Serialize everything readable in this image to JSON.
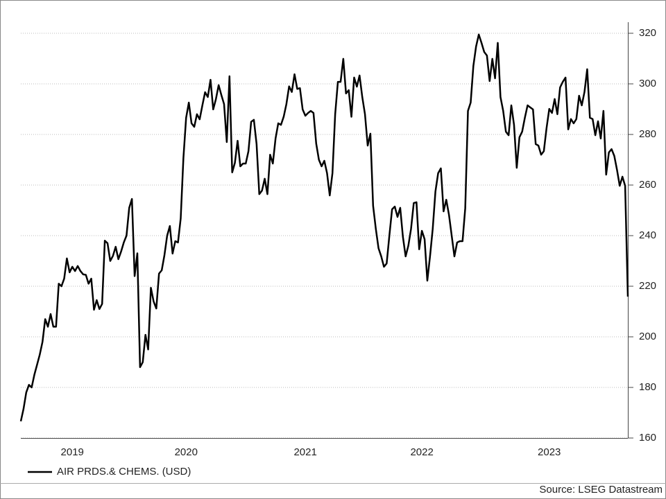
{
  "chart_data": {
    "type": "line",
    "categories": [
      null,
      null,
      null,
      null,
      null,
      null,
      null,
      null,
      null,
      null,
      null,
      null,
      null,
      null,
      null,
      null,
      null,
      null,
      null,
      "2019",
      null,
      null,
      null,
      null,
      null,
      null,
      null,
      null,
      null,
      null,
      null,
      null,
      null,
      null,
      null,
      null,
      null,
      null,
      null,
      null,
      null,
      null,
      null,
      null,
      null,
      null,
      null,
      null,
      null,
      null,
      null,
      null,
      null,
      null,
      null,
      null,
      null,
      null,
      null,
      null,
      null,
      "2020",
      null,
      null,
      null,
      null,
      null,
      null,
      null,
      null,
      null,
      null,
      null,
      null,
      null,
      null,
      null,
      null,
      null,
      null,
      null,
      null,
      null,
      null,
      null,
      null,
      null,
      null,
      null,
      null,
      null,
      null,
      null,
      null,
      null,
      null,
      null,
      null,
      null,
      null,
      null,
      null,
      null,
      null,
      null,
      "2021",
      null,
      null,
      null,
      null,
      null,
      null,
      null,
      null,
      null,
      null,
      null,
      null,
      null,
      null,
      null,
      null,
      null,
      null,
      null,
      null,
      null,
      null,
      null,
      null,
      null,
      null,
      null,
      null,
      null,
      null,
      null,
      null,
      null,
      null,
      null,
      null,
      null,
      null,
      null,
      null,
      null,
      null,
      "2022",
      null,
      null,
      null,
      null,
      null,
      null,
      null,
      null,
      null,
      null,
      null,
      null,
      null,
      null,
      null,
      null,
      null,
      null,
      null,
      null,
      null,
      null,
      null,
      null,
      null,
      null,
      null,
      null,
      null,
      null,
      null,
      null,
      null,
      null,
      null,
      null,
      null,
      null,
      null,
      null,
      null,
      null,
      null,
      null,
      null,
      null,
      "2023",
      null,
      null,
      null,
      null,
      null,
      null,
      null,
      null,
      null,
      null,
      null,
      null,
      null,
      null,
      null,
      null,
      null,
      null,
      null,
      null,
      null,
      null,
      null,
      null,
      null,
      null,
      null,
      null,
      null
    ],
    "series": [
      {
        "name": "AIR PRDS.& CHEMS. (USD)",
        "color": "#000000",
        "values": [
          166.6,
          171.5,
          178,
          181,
          180,
          185,
          189,
          193,
          198,
          207,
          204,
          209,
          204,
          204,
          221,
          220,
          223,
          231,
          225.5,
          227.7,
          226,
          228,
          226,
          224.7,
          224.5,
          221,
          223,
          210.7,
          214.5,
          211,
          213,
          238,
          237,
          230,
          232,
          235.6,
          230.7,
          233.7,
          237.3,
          240,
          251,
          254.5,
          224,
          233,
          188,
          190,
          200.8,
          195,
          219.4,
          214,
          211.2,
          225,
          226.3,
          232.3,
          240,
          243.8,
          232.9,
          237.8,
          237.3,
          246.8,
          270.7,
          286.6,
          292.6,
          284.4,
          283,
          288,
          286,
          291.5,
          296.7,
          294.8,
          301.6,
          289.9,
          294,
          299.5,
          295.6,
          292,
          277,
          303,
          265,
          268.8,
          277.5,
          267.4,
          268.5,
          268.5,
          273.4,
          285,
          285.8,
          276.2,
          256.4,
          257.8,
          262.5,
          256.4,
          272,
          268.5,
          278.4,
          284.4,
          283.8,
          287,
          292,
          299,
          296.8,
          303.8,
          298,
          298.3,
          289.9,
          287.4,
          288.5,
          289.3,
          288.5,
          276.4,
          270,
          267.4,
          269.6,
          264.7,
          255.9,
          264.7,
          288,
          300.8,
          300.8,
          309.9,
          296.2,
          297.5,
          287,
          302.5,
          298.9,
          303.3,
          294.8,
          288,
          275.6,
          280.3,
          251.8,
          242.7,
          235,
          231.8,
          227.7,
          229,
          240,
          250.4,
          251.5,
          247.4,
          251,
          239.5,
          231.8,
          236,
          242.7,
          252.9,
          253.2,
          234.6,
          241.9,
          238.6,
          222.2,
          231.8,
          242.7,
          257.5,
          264.7,
          266.6,
          249.6,
          254.2,
          248.2,
          240,
          231.8,
          237.3,
          237.8,
          237.8,
          250.9,
          289.3,
          292.6,
          307.1,
          314.8,
          319.5,
          316.2,
          312.6,
          311.2,
          301.1,
          309.9,
          302.2,
          316.2,
          294.8,
          289.3,
          281.1,
          279.7,
          291.5,
          283.8,
          266.8,
          278.9,
          281.1,
          286.6,
          291.5,
          290.7,
          289.9,
          276.2,
          275.6,
          272,
          273.4,
          282.5,
          290.1,
          288.5,
          294,
          288,
          298.6,
          300.8,
          302.5,
          282,
          286.1,
          284.4,
          286.1,
          295.3,
          291.5,
          296.8,
          305.8,
          286.6,
          286.1,
          279.7,
          285.2,
          278.4,
          289.3,
          264.1,
          272.9,
          274.2,
          271.5,
          266,
          259.7,
          263.3,
          259.7,
          215.9
        ]
      }
    ],
    "ylim": [
      160,
      320
    ],
    "yticks": [
      160,
      180,
      200,
      220,
      240,
      260,
      280,
      300,
      320
    ],
    "grid": true,
    "source": "Source: LSEG Datastream"
  }
}
